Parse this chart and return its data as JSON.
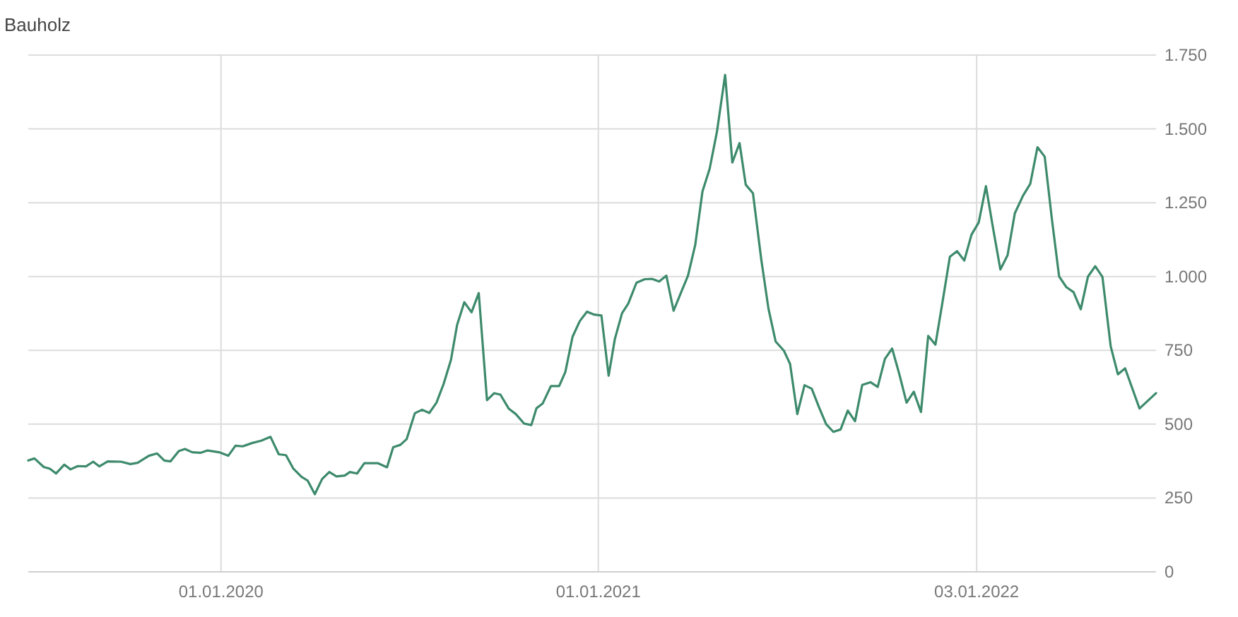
{
  "chart_data": {
    "type": "line",
    "title": "Bauholz",
    "x": [
      "2019-06-28",
      "2019-07-04",
      "2019-07-13",
      "2019-07-19",
      "2019-07-25",
      "2019-08-02",
      "2019-08-08",
      "2019-08-15",
      "2019-08-23",
      "2019-08-30",
      "2019-09-05",
      "2019-09-13",
      "2019-09-26",
      "2019-10-05",
      "2019-10-12",
      "2019-10-23",
      "2019-10-31",
      "2019-11-07",
      "2019-11-13",
      "2019-11-21",
      "2019-11-27",
      "2019-12-04",
      "2019-12-12",
      "2019-12-19",
      "2019-12-30",
      "2020-01-08",
      "2020-01-15",
      "2020-01-22",
      "2020-01-31",
      "2020-02-09",
      "2020-02-18",
      "2020-02-26",
      "2020-03-04",
      "2020-03-11",
      "2020-03-19",
      "2020-03-25",
      "2020-04-01",
      "2020-04-08",
      "2020-04-15",
      "2020-04-22",
      "2020-04-30",
      "2020-05-05",
      "2020-05-12",
      "2020-05-19",
      "2020-06-01",
      "2020-06-10",
      "2020-06-16",
      "2020-06-23",
      "2020-06-29",
      "2020-07-07",
      "2020-07-14",
      "2020-07-21",
      "2020-07-28",
      "2020-08-04",
      "2020-08-11",
      "2020-08-17",
      "2020-08-24",
      "2020-08-31",
      "2020-09-07",
      "2020-09-15",
      "2020-09-22",
      "2020-09-28",
      "2020-10-06",
      "2020-10-13",
      "2020-10-21",
      "2020-10-28",
      "2020-11-02",
      "2020-11-08",
      "2020-11-16",
      "2020-11-24",
      "2020-11-30",
      "2020-12-07",
      "2020-12-14",
      "2020-12-21",
      "2020-12-28",
      "2021-01-04",
      "2021-01-11",
      "2021-01-17",
      "2021-01-24",
      "2021-01-30",
      "2021-02-07",
      "2021-02-15",
      "2021-02-22",
      "2021-03-01",
      "2021-03-08",
      "2021-03-15",
      "2021-03-22",
      "2021-03-29",
      "2021-04-05",
      "2021-04-12",
      "2021-04-19",
      "2021-04-26",
      "2021-05-04",
      "2021-05-11",
      "2021-05-18",
      "2021-05-24",
      "2021-05-31",
      "2021-06-08",
      "2021-06-15",
      "2021-06-22",
      "2021-06-30",
      "2021-07-06",
      "2021-07-13",
      "2021-07-20",
      "2021-07-27",
      "2021-08-03",
      "2021-08-10",
      "2021-08-17",
      "2021-08-24",
      "2021-08-31",
      "2021-09-07",
      "2021-09-14",
      "2021-09-22",
      "2021-09-29",
      "2021-10-06",
      "2021-10-13",
      "2021-10-20",
      "2021-10-27",
      "2021-11-03",
      "2021-11-10",
      "2021-11-17",
      "2021-11-24",
      "2021-12-01",
      "2021-12-08",
      "2021-12-15",
      "2021-12-22",
      "2021-12-29",
      "2022-01-05",
      "2022-01-12",
      "2022-01-19",
      "2022-01-26",
      "2022-02-02",
      "2022-02-09",
      "2022-02-17",
      "2022-02-24",
      "2022-03-03",
      "2022-03-10",
      "2022-03-17",
      "2022-03-24",
      "2022-03-31",
      "2022-04-07",
      "2022-04-14",
      "2022-04-21",
      "2022-04-28",
      "2022-05-05",
      "2022-05-13",
      "2022-05-20",
      "2022-05-27",
      "2022-06-10",
      "2022-06-26"
    ],
    "series": [
      {
        "color": "#3d8a6c",
        "values": [
          377,
          384,
          355,
          349,
          333,
          363,
          347,
          358,
          357,
          373,
          357,
          374,
          373,
          365,
          369,
          393,
          401,
          377,
          374,
          409,
          416,
          405,
          403,
          411,
          405,
          393,
          427,
          425,
          436,
          444,
          457,
          398,
          395,
          350,
          322,
          309,
          263,
          314,
          338,
          323,
          326,
          338,
          333,
          368,
          368,
          354,
          422,
          430,
          449,
          537,
          549,
          538,
          573,
          637,
          717,
          836,
          913,
          879,
          944,
          581,
          605,
          600,
          553,
          534,
          502,
          497,
          554,
          570,
          629,
          629,
          677,
          796,
          849,
          881,
          871,
          868,
          664,
          788,
          876,
          908,
          979,
          991,
          992,
          983,
          1003,
          884,
          944,
          1003,
          1107,
          1288,
          1365,
          1489,
          1683,
          1386,
          1452,
          1311,
          1282,
          1059,
          892,
          780,
          749,
          704,
          534,
          632,
          620,
          558,
          500,
          474,
          482,
          546,
          510,
          633,
          642,
          626,
          721,
          756,
          669,
          573,
          610,
          541,
          799,
          769,
          916,
          1067,
          1086,
          1054,
          1142,
          1183,
          1306,
          1162,
          1024,
          1072,
          1214,
          1274,
          1314,
          1438,
          1406,
          1194,
          1000,
          964,
          947,
          889,
          1000,
          1035,
          999,
          764,
          669,
          689,
          553,
          605
        ]
      }
    ],
    "xlim": [
      "2019-06-28",
      "2022-06-26"
    ],
    "xticks": [
      {
        "value": "2020-01-01",
        "label": "01.01.2020"
      },
      {
        "value": "2021-01-01",
        "label": "01.01.2021"
      },
      {
        "value": "2022-01-03",
        "label": "03.01.2022"
      }
    ],
    "ylim": [
      0,
      1750
    ],
    "yticks": [
      0,
      250,
      500,
      750,
      {
        "value": 1000,
        "label": "1.000"
      },
      {
        "value": 1250,
        "label": "1.250"
      },
      {
        "value": 1500,
        "label": "1.500"
      },
      {
        "value": 1750,
        "label": "1.750"
      }
    ],
    "grid": true,
    "marker": "none",
    "line_style": "solid"
  }
}
